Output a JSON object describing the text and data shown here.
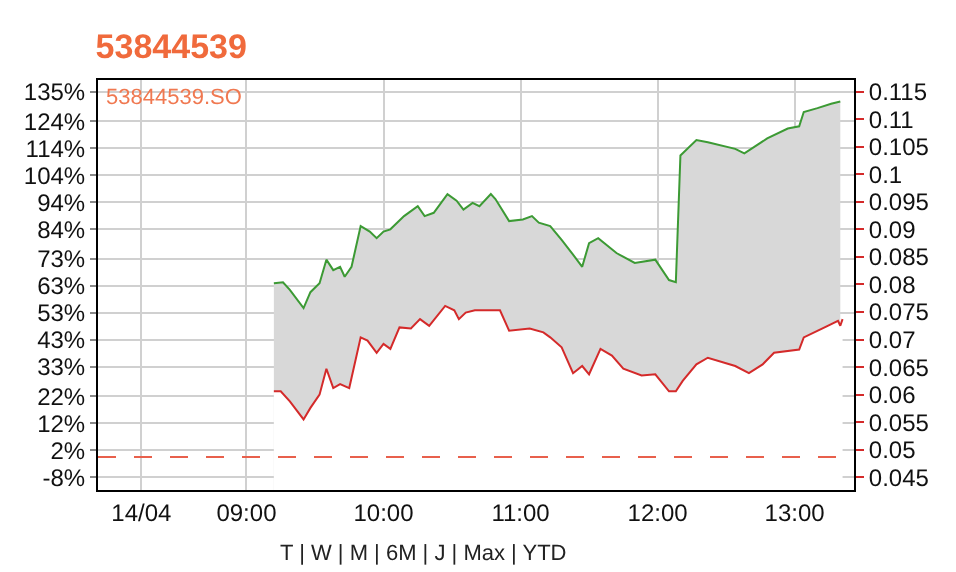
{
  "chart_data": {
    "type": "area",
    "title": "53844539",
    "annotations": [
      "53844539.SO",
      "T | W | M | 6M | J | Max | YTD"
    ],
    "xlim": [
      "--04-14T07:55",
      "--04-14T13:26"
    ],
    "xticks": [
      {
        "value": "--04-14T08:14",
        "label": "14/04"
      },
      {
        "value": "--04-14T09:00",
        "label": "09:00"
      },
      {
        "value": "--04-14T10:00",
        "label": "10:00"
      },
      {
        "value": "--04-14T11:00",
        "label": "11:00"
      },
      {
        "value": "--04-14T12:00",
        "label": "12:00"
      },
      {
        "value": "--04-14T13:00",
        "label": "13:00"
      }
    ],
    "ylim": [
      -12.7,
      139.3
    ],
    "yticks": [
      {
        "value": -8,
        "label": "-8%"
      },
      {
        "value": 2,
        "label": "2%"
      },
      {
        "value": 12,
        "label": "12%"
      },
      {
        "value": 22,
        "label": "22%"
      },
      {
        "value": 33,
        "label": "33%"
      },
      {
        "value": 43,
        "label": "43%"
      },
      {
        "value": 53,
        "label": "53%"
      },
      {
        "value": 63,
        "label": "63%"
      },
      {
        "value": 73,
        "label": "73%"
      },
      {
        "value": 84,
        "label": "84%"
      },
      {
        "value": 94,
        "label": "94%"
      },
      {
        "value": 104,
        "label": "104%"
      },
      {
        "value": 114,
        "label": "114%"
      },
      {
        "value": 124,
        "label": "124%"
      },
      {
        "value": 135,
        "label": "135%"
      }
    ],
    "y2lim": [
      0.0427,
      0.1171
    ],
    "y2ticks": [
      0.045,
      0.05,
      0.055,
      0.06,
      0.065,
      0.07,
      0.075,
      0.08,
      0.085,
      0.09,
      0.095,
      0.1,
      0.105,
      0.11,
      0.115
    ],
    "grid": true,
    "legend": false,
    "ref_lines": [
      {
        "axis": "y2",
        "value": 0.0487,
        "color": "#e8604c",
        "line_style": "dashed"
      }
    ],
    "series": [
      {
        "axis": "y2",
        "color": "#d42a2a",
        "x": [
          "--04-14T09:12",
          "--04-14T09:15",
          "--04-14T09:19",
          "--04-14T09:25",
          "--04-14T09:28",
          "--04-14T09:32",
          "--04-14T09:35",
          "--04-14T09:38",
          "--04-14T09:41",
          "--04-14T09:45",
          "--04-14T09:50",
          "--04-14T09:53",
          "--04-14T09:57",
          "--04-14T10:00",
          "--04-14T10:03",
          "--04-14T10:07",
          "--04-14T10:12",
          "--04-14T10:16",
          "--04-14T10:20",
          "--04-14T10:27",
          "--04-14T10:31",
          "--04-14T10:33",
          "--04-14T10:36",
          "--04-14T10:40",
          "--04-14T10:51",
          "--04-14T10:55",
          "--04-14T11:04",
          "--04-14T11:10",
          "--04-14T11:13",
          "--04-14T11:18",
          "--04-14T11:23",
          "--04-14T11:27",
          "--04-14T11:30",
          "--04-14T11:35",
          "--04-14T11:40",
          "--04-14T11:45",
          "--04-14T11:53",
          "--04-14T11:59",
          "--04-14T12:05",
          "--04-14T12:08",
          "--04-14T12:11",
          "--04-14T12:17",
          "--04-14T12:22",
          "--04-14T12:34",
          "--04-14T12:40",
          "--04-14T12:46",
          "--04-14T12:51",
          "--04-14T13:02",
          "--04-14T13:04",
          "--04-14T13:12",
          "--04-14T13:19",
          "--04-14T13:20",
          "--04-14T13:21"
        ],
        "values": [
          0.0606,
          0.0606,
          0.0588,
          0.0555,
          0.0576,
          0.06,
          0.0647,
          0.0612,
          0.0619,
          0.0612,
          0.0704,
          0.0698,
          0.0676,
          0.0692,
          0.0683,
          0.0722,
          0.072,
          0.0737,
          0.0725,
          0.0761,
          0.0753,
          0.0737,
          0.0749,
          0.0753,
          0.0753,
          0.0716,
          0.072,
          0.0713,
          0.0704,
          0.0686,
          0.0639,
          0.0652,
          0.0637,
          0.0683,
          0.0671,
          0.0647,
          0.0635,
          0.0637,
          0.0606,
          0.0606,
          0.0625,
          0.0655,
          0.0667,
          0.0652,
          0.0639,
          0.0655,
          0.0676,
          0.0682,
          0.0704,
          0.072,
          0.0734,
          0.0725,
          0.0737
        ]
      },
      {
        "axis": "y2",
        "color": "#3c9a34",
        "x": [
          "--04-14T09:12",
          "--04-14T09:16",
          "--04-14T09:19",
          "--04-14T09:25",
          "--04-14T09:28",
          "--04-14T09:32",
          "--04-14T09:35",
          "--04-14T09:38",
          "--04-14T09:41",
          "--04-14T09:43",
          "--04-14T09:46",
          "--04-14T09:50",
          "--04-14T09:54",
          "--04-14T09:57",
          "--04-14T10:00",
          "--04-14T10:03",
          "--04-14T10:09",
          "--04-14T10:15",
          "--04-14T10:18",
          "--04-14T10:22",
          "--04-14T10:28",
          "--04-14T10:32",
          "--04-14T10:35",
          "--04-14T10:39",
          "--04-14T10:42",
          "--04-14T10:47",
          "--04-14T10:49",
          "--04-14T10:55",
          "--04-14T11:01",
          "--04-14T11:05",
          "--04-14T11:08",
          "--04-14T11:13",
          "--04-14T11:18",
          "--04-14T11:23",
          "--04-14T11:27",
          "--04-14T11:30",
          "--04-14T11:34",
          "--04-14T11:42",
          "--04-14T11:50",
          "--04-14T11:59",
          "--04-14T12:05",
          "--04-14T12:08",
          "--04-14T12:10",
          "--04-14T12:17",
          "--04-14T12:22",
          "--04-14T12:34",
          "--04-14T12:38",
          "--04-14T12:41",
          "--04-14T12:48",
          "--04-14T12:57",
          "--04-14T13:02",
          "--04-14T13:04",
          "--04-14T13:10",
          "--04-14T13:16",
          "--04-14T13:20"
        ],
        "values": [
          0.0802,
          0.0804,
          0.079,
          0.0757,
          0.0786,
          0.0802,
          0.0845,
          0.0826,
          0.0832,
          0.0814,
          0.0832,
          0.0906,
          0.0896,
          0.0884,
          0.0896,
          0.09,
          0.0924,
          0.0942,
          0.0924,
          0.093,
          0.0964,
          0.0952,
          0.0936,
          0.0948,
          0.0942,
          0.0964,
          0.0955,
          0.0915,
          0.0918,
          0.0924,
          0.0912,
          0.0906,
          0.0881,
          0.0854,
          0.0832,
          0.0875,
          0.0884,
          0.0857,
          0.0839,
          0.0845,
          0.0808,
          0.0804,
          0.1034,
          0.1062,
          0.1058,
          0.1046,
          0.1038,
          0.1046,
          0.1065,
          0.1083,
          0.1087,
          0.1113,
          0.112,
          0.1128,
          0.1132
        ]
      }
    ]
  }
}
